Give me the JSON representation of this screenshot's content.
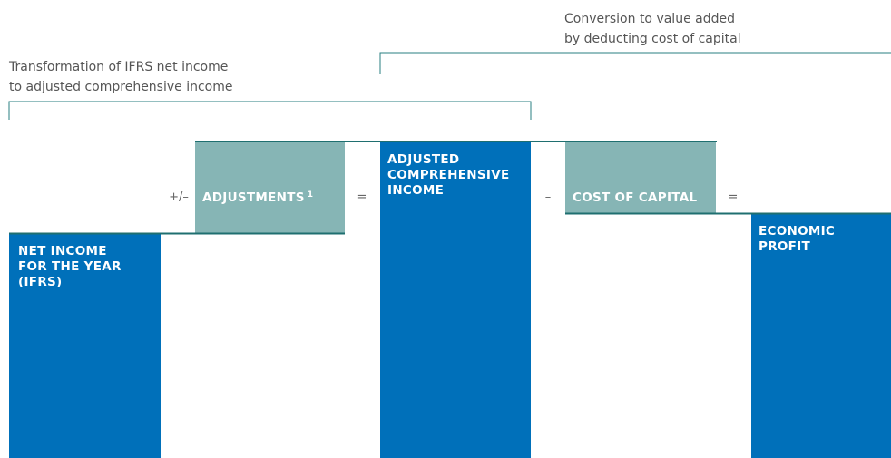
{
  "brackets": [
    {
      "lines": [
        "Transformation of IFRS net income",
        " to adjusted comprehensive income"
      ]
    },
    {
      "lines": [
        "Conversion to value added",
        "by deducting cost of capital"
      ]
    }
  ],
  "boxes": [
    {
      "lines": [
        "NET INCOME",
        "FOR THE YEAR",
        "(IFRS)"
      ]
    },
    {
      "lines": [
        "ADJUSTMENTS"
      ],
      "footnote": "1"
    },
    {
      "lines": [
        "ADJUSTED",
        "COMPREHENSIVE",
        "INCOME"
      ]
    },
    {
      "lines": [
        "COST OF CAPITAL"
      ]
    },
    {
      "lines": [
        "ECONOMIC",
        "PROFIT"
      ]
    }
  ],
  "operators": [
    "+/–",
    "=",
    "–",
    "="
  ]
}
